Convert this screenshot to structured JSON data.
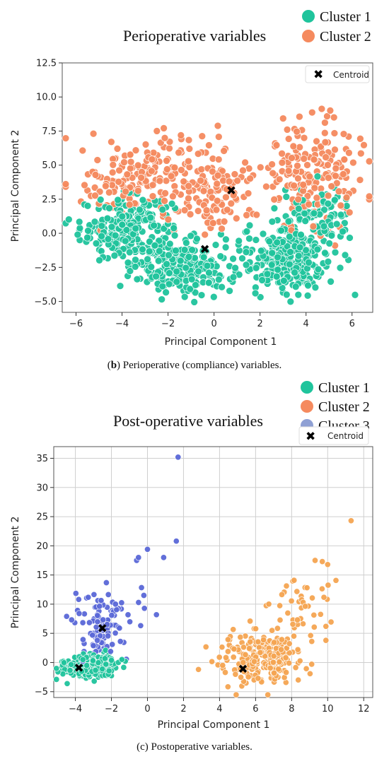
{
  "chart_data": [
    {
      "type": "scatter",
      "title": "Perioperative variables",
      "caption": "(b) Perioperative (compliance) variables.",
      "caption_bold": "b",
      "xlabel": "Principal Component 1",
      "ylabel": "Principal Component 2",
      "xlim": [
        -6.6,
        6.9
      ],
      "ylim": [
        -5.8,
        12.5
      ],
      "xticks": [
        -6,
        -4,
        -2,
        0,
        2,
        4,
        6
      ],
      "yticks": [
        -5.0,
        -2.5,
        0.0,
        2.5,
        5.0,
        7.5,
        10.0,
        12.5
      ],
      "xtick_labels": [
        "−6",
        "−4",
        "−2",
        "0",
        "2",
        "4",
        "6"
      ],
      "ytick_labels": [
        "−5.0",
        "−2.5",
        "0.0",
        "2.5",
        "5.0",
        "7.5",
        "10.0",
        "12.5"
      ],
      "grid": false,
      "legend": {
        "placement": "top-right-outside",
        "entries": [
          "Cluster 1",
          "Cluster 2"
        ]
      },
      "centroid_legend": {
        "label": "Centroid",
        "placement": "top-right"
      },
      "series": [
        {
          "name": "Cluster 1",
          "color": "#1fc49c",
          "blobs": [
            {
              "cx": -3.8,
              "cy": 0.3,
              "sx": 1.0,
              "sy": 1.2,
              "n": 230
            },
            {
              "cx": -1.2,
              "cy": -2.6,
              "sx": 1.0,
              "sy": 1.0,
              "n": 220
            },
            {
              "cx": 3.2,
              "cy": -1.8,
              "sx": 1.0,
              "sy": 1.3,
              "n": 260
            },
            {
              "cx": 4.5,
              "cy": 1.0,
              "sx": 0.8,
              "sy": 1.0,
              "n": 80
            }
          ]
        },
        {
          "name": "Cluster 2",
          "color": "#f58a5e",
          "blobs": [
            {
              "cx": -3.5,
              "cy": 3.8,
              "sx": 1.1,
              "sy": 1.2,
              "n": 130
            },
            {
              "cx": 0.0,
              "cy": 2.8,
              "sx": 0.9,
              "sy": 1.3,
              "n": 110
            },
            {
              "cx": 4.3,
              "cy": 4.6,
              "sx": 1.2,
              "sy": 2.0,
              "n": 180
            },
            {
              "cx": -1.5,
              "cy": 6.0,
              "sx": 1.2,
              "sy": 1.2,
              "n": 40
            }
          ]
        }
      ],
      "centroids": [
        {
          "x": 0.75,
          "y": 3.15
        },
        {
          "x": -0.4,
          "y": -1.15
        }
      ]
    },
    {
      "type": "scatter",
      "title": "Post-operative variables",
      "caption": "(c) Postoperative variables.",
      "xlabel": "Principal Component 1",
      "ylabel": "Principal Component 2",
      "xlim": [
        -5.2,
        12.5
      ],
      "ylim": [
        -6.0,
        37.0
      ],
      "xticks": [
        -4,
        -2,
        0,
        2,
        4,
        6,
        8,
        10,
        12
      ],
      "yticks": [
        -5,
        0,
        5,
        10,
        15,
        20,
        25,
        30,
        35
      ],
      "xtick_labels": [
        "−4",
        "−2",
        "0",
        "2",
        "4",
        "6",
        "8",
        "10",
        "12"
      ],
      "ytick_labels": [
        "−5",
        "0",
        "5",
        "10",
        "15",
        "20",
        "25",
        "30",
        "35"
      ],
      "grid": true,
      "legend": {
        "placement": "top-right-outside",
        "entries": [
          "Cluster 1",
          "Cluster 2",
          "Cluster 3"
        ]
      },
      "centroid_legend": {
        "label": "Centroid",
        "placement": "top-right"
      },
      "series": [
        {
          "name": "Cluster 1",
          "color": "#1fc49c",
          "blobs": [
            {
              "cx": -3.2,
              "cy": -0.6,
              "sx": 0.7,
              "sy": 1.0,
              "n": 320
            }
          ]
        },
        {
          "name": "Cluster 2",
          "color": "#f5a552",
          "blobs": [
            {
              "cx": 6.2,
              "cy": 0.8,
              "sx": 1.1,
              "sy": 2.0,
              "n": 230
            },
            {
              "cx": 8.5,
              "cy": 8.5,
              "sx": 0.9,
              "sy": 3.0,
              "n": 45
            }
          ],
          "points": [
            [
              11.3,
              24.3
            ],
            [
              9.3,
              17.5
            ],
            [
              9.7,
              17.3
            ],
            [
              10.0,
              16.8
            ],
            [
              9.9,
              6.2
            ],
            [
              9.9,
              3.8
            ]
          ]
        },
        {
          "name": "Cluster 3",
          "color": "#5a68d8",
          "blobs": [
            {
              "cx": -2.5,
              "cy": 6.5,
              "sx": 0.8,
              "sy": 3.0,
              "n": 110
            }
          ],
          "points": [
            [
              1.7,
              35.2
            ],
            [
              1.6,
              20.8
            ],
            [
              0.0,
              19.4
            ],
            [
              0.9,
              18.0
            ],
            [
              -0.2,
              11.5
            ],
            [
              0.5,
              8.2
            ],
            [
              -0.6,
              17.5
            ],
            [
              -0.5,
              18.0
            ]
          ]
        }
      ],
      "centroids": [
        {
          "x": -2.5,
          "y": 5.9
        },
        {
          "x": -3.8,
          "y": -0.9
        },
        {
          "x": 5.3,
          "y": -1.1
        }
      ]
    }
  ]
}
